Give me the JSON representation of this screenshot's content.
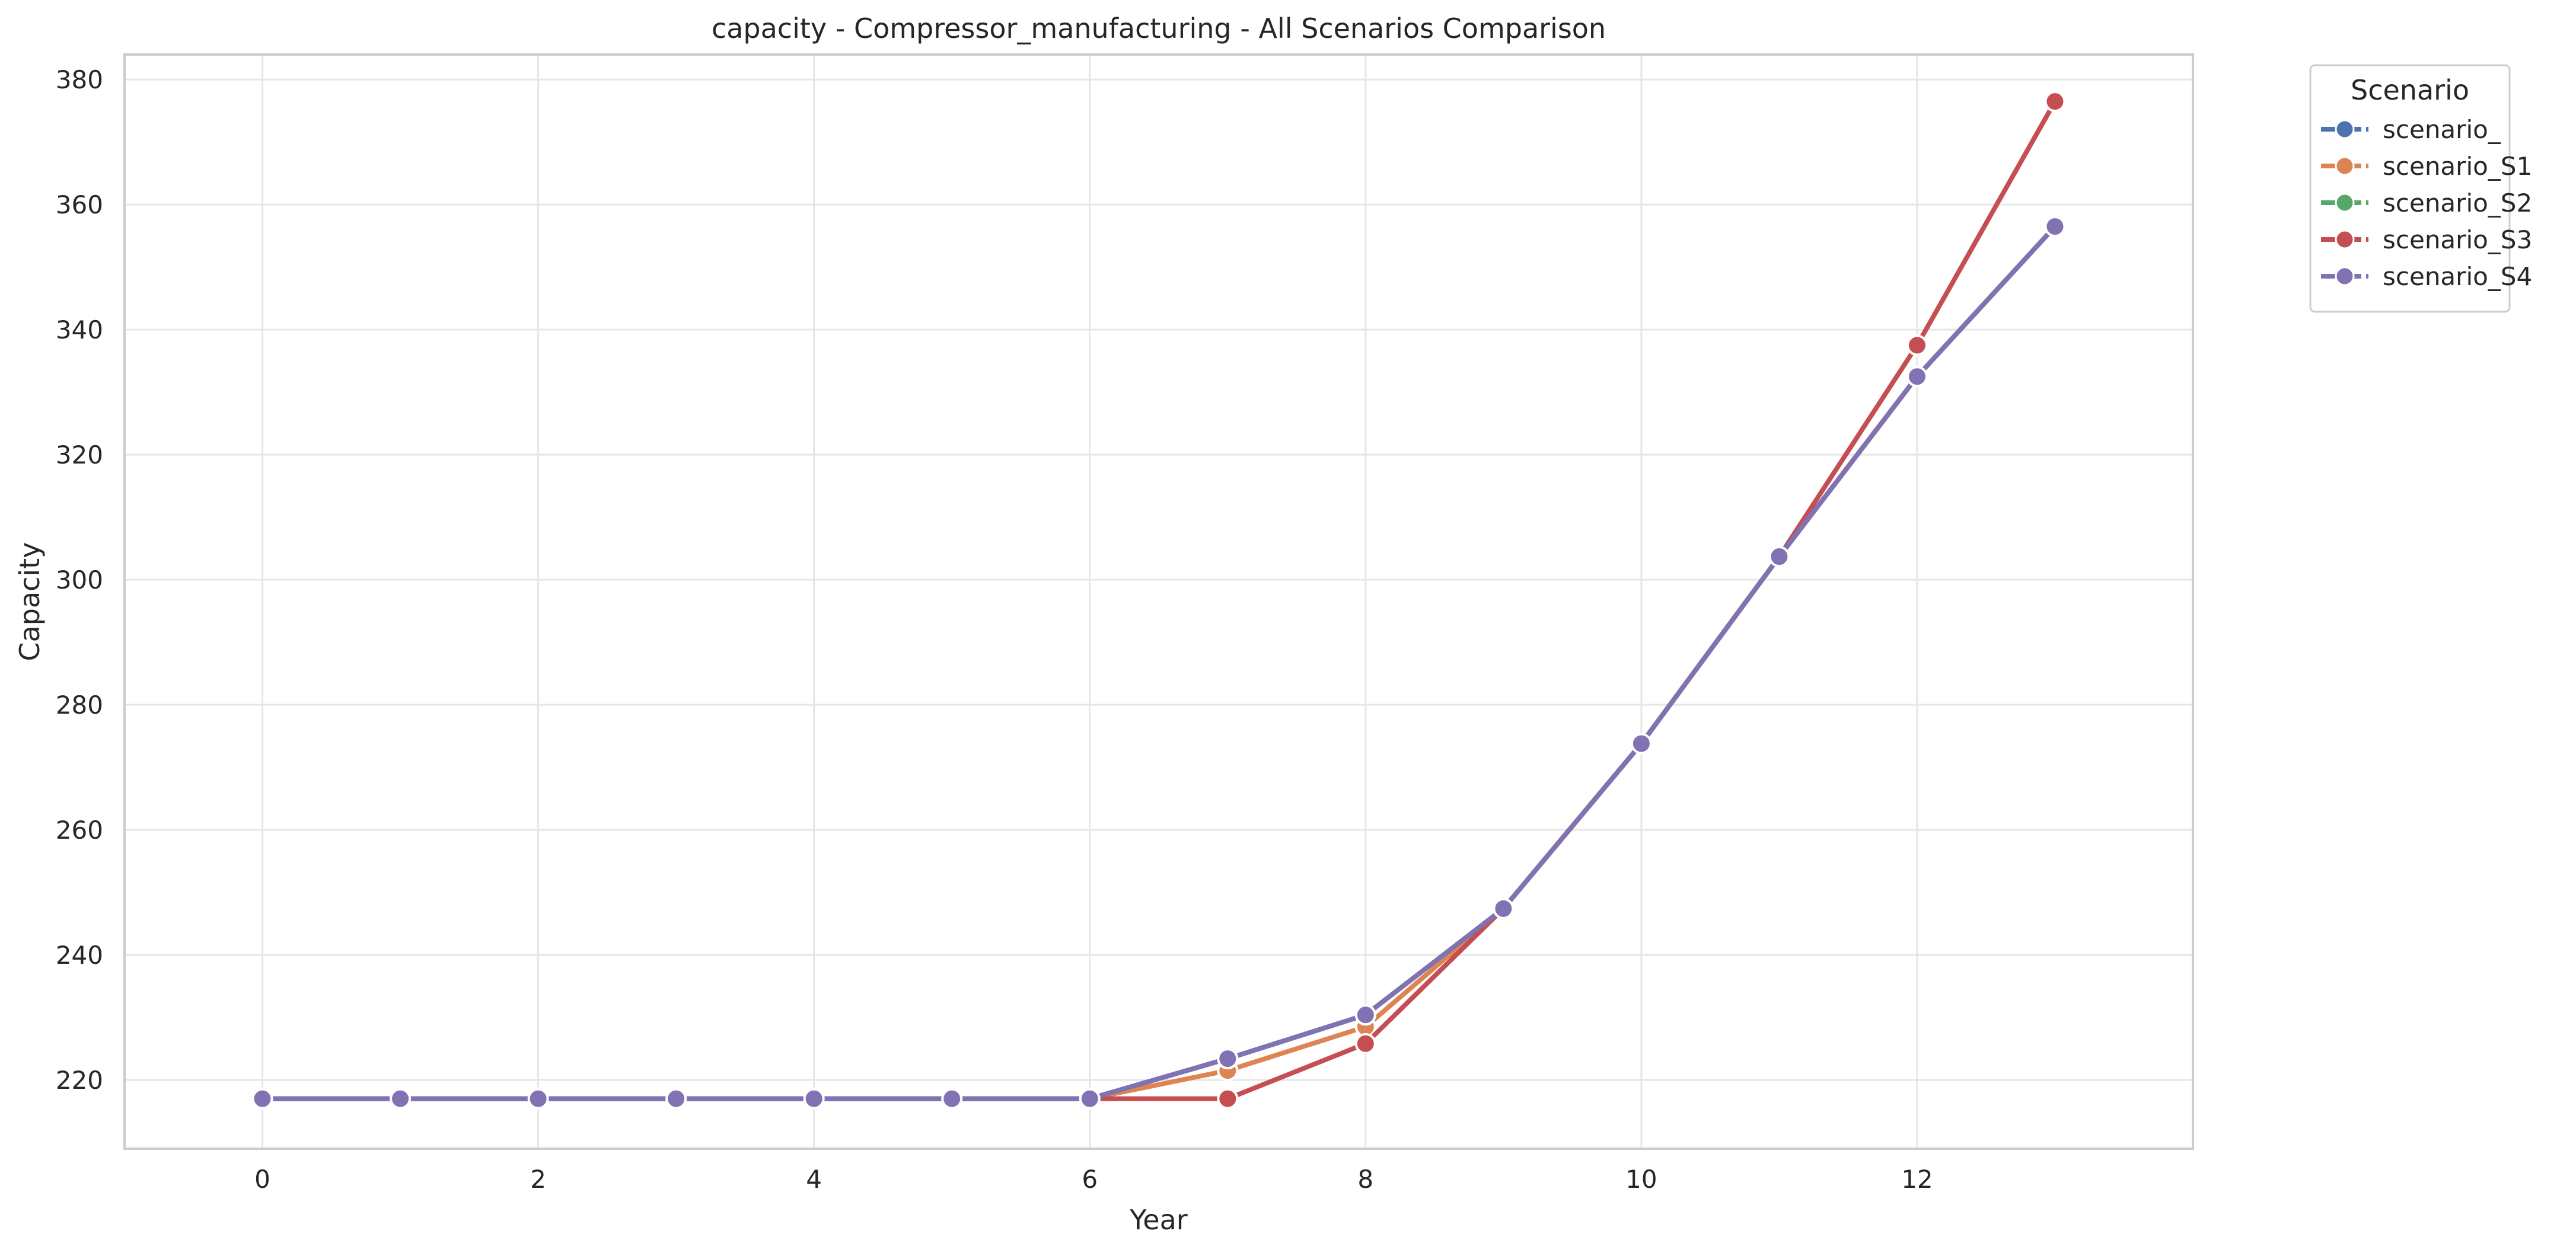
{
  "chart_data": {
    "type": "line",
    "title": "capacity - Compressor_manufacturing - All Scenarios Comparison",
    "xlabel": "Year",
    "ylabel": "Capacity",
    "xlim": [
      -1.0,
      14.0
    ],
    "ylim": [
      209,
      384
    ],
    "xticks": [
      0,
      2,
      4,
      6,
      8,
      10,
      12
    ],
    "yticks": [
      220,
      240,
      260,
      280,
      300,
      320,
      340,
      360,
      380
    ],
    "grid": true,
    "legend": {
      "title": "Scenario",
      "placement": "outside top-right"
    },
    "x": [
      0,
      1,
      2,
      3,
      4,
      5,
      6,
      7,
      8,
      9,
      10,
      11,
      12,
      13
    ],
    "series": [
      {
        "name": "scenario_",
        "color": "#4c72b0",
        "values": [
          217,
          217,
          217,
          217,
          217,
          217,
          217,
          223.4,
          230.4,
          247.4,
          273.8,
          303.7,
          332.5,
          356.5
        ]
      },
      {
        "name": "scenario_S1",
        "color": "#dd8452",
        "values": [
          217,
          217,
          217,
          217,
          217,
          217,
          217,
          221.5,
          228.5,
          247.4,
          273.8,
          303.7,
          332.5,
          356.5
        ]
      },
      {
        "name": "scenario_S2",
        "color": "#55a868",
        "values": [
          217,
          217,
          217,
          217,
          217,
          217,
          217,
          223.4,
          230.4,
          247.4,
          273.8,
          303.7,
          332.5,
          356.5
        ]
      },
      {
        "name": "scenario_S3",
        "color": "#c44e52",
        "values": [
          217,
          217,
          217,
          217,
          217,
          217,
          217,
          217,
          225.8,
          247.4,
          273.8,
          303.7,
          337.5,
          376.5
        ]
      },
      {
        "name": "scenario_S4",
        "color": "#8172b3",
        "values": [
          217,
          217,
          217,
          217,
          217,
          217,
          217,
          223.4,
          230.4,
          247.4,
          273.8,
          303.7,
          332.5,
          356.5
        ]
      }
    ]
  }
}
